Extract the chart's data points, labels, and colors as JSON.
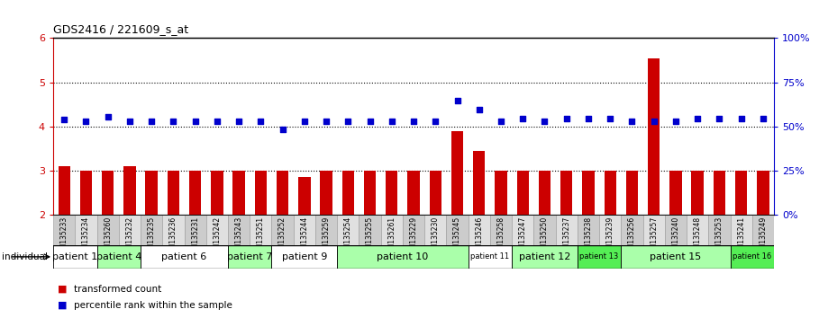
{
  "title": "GDS2416 / 221609_s_at",
  "samples": [
    "GSM135233",
    "GSM135234",
    "GSM135260",
    "GSM135232",
    "GSM135235",
    "GSM135236",
    "GSM135231",
    "GSM135242",
    "GSM135243",
    "GSM135251",
    "GSM135252",
    "GSM135244",
    "GSM135259",
    "GSM135254",
    "GSM135255",
    "GSM135261",
    "GSM135229",
    "GSM135230",
    "GSM135245",
    "GSM135246",
    "GSM135258",
    "GSM135247",
    "GSM135250",
    "GSM135237",
    "GSM135238",
    "GSM135239",
    "GSM135256",
    "GSM135257",
    "GSM135240",
    "GSM135248",
    "GSM135253",
    "GSM135241",
    "GSM135249"
  ],
  "red_values": [
    3.1,
    3.0,
    3.0,
    3.1,
    3.0,
    3.0,
    3.0,
    3.0,
    3.0,
    3.0,
    3.0,
    2.85,
    3.0,
    3.0,
    3.0,
    3.0,
    3.0,
    3.0,
    3.9,
    3.45,
    3.0,
    3.0,
    3.0,
    3.0,
    3.0,
    3.0,
    3.0,
    5.55,
    3.0,
    3.0,
    3.0,
    3.0,
    3.0
  ],
  "blue_values": [
    4.15,
    4.12,
    4.22,
    4.12,
    4.12,
    4.12,
    4.12,
    4.12,
    4.12,
    4.12,
    3.93,
    4.12,
    4.12,
    4.12,
    4.12,
    4.12,
    4.12,
    4.12,
    4.58,
    4.38,
    4.12,
    4.18,
    4.12,
    4.18,
    4.18,
    4.18,
    4.12,
    4.12,
    4.12,
    4.18,
    4.18,
    4.18,
    4.18
  ],
  "ylim_left": [
    2,
    6
  ],
  "ylim_right": [
    0,
    100
  ],
  "yticks_left": [
    2,
    3,
    4,
    5,
    6
  ],
  "yticks_right": [
    0,
    25,
    50,
    75,
    100
  ],
  "ytick_labels_right": [
    "0%",
    "25%",
    "50%",
    "75%",
    "100%"
  ],
  "hlines": [
    3.0,
    4.0,
    5.0
  ],
  "patient_groups": [
    {
      "label": "patient 1",
      "start": 0,
      "end": 2,
      "color": "#ffffff",
      "fontsize": 8
    },
    {
      "label": "patient 4",
      "start": 2,
      "end": 4,
      "color": "#aaffaa",
      "fontsize": 8
    },
    {
      "label": "patient 6",
      "start": 4,
      "end": 8,
      "color": "#ffffff",
      "fontsize": 8
    },
    {
      "label": "patient 7",
      "start": 8,
      "end": 10,
      "color": "#aaffaa",
      "fontsize": 8
    },
    {
      "label": "patient 9",
      "start": 10,
      "end": 13,
      "color": "#ffffff",
      "fontsize": 8
    },
    {
      "label": "patient 10",
      "start": 13,
      "end": 19,
      "color": "#aaffaa",
      "fontsize": 8
    },
    {
      "label": "patient 11",
      "start": 19,
      "end": 21,
      "color": "#ffffff",
      "fontsize": 6
    },
    {
      "label": "patient 12",
      "start": 21,
      "end": 24,
      "color": "#aaffaa",
      "fontsize": 8
    },
    {
      "label": "patient 13",
      "start": 24,
      "end": 26,
      "color": "#55ee55",
      "fontsize": 6
    },
    {
      "label": "patient 15",
      "start": 26,
      "end": 31,
      "color": "#aaffaa",
      "fontsize": 8
    },
    {
      "label": "patient 16",
      "start": 31,
      "end": 33,
      "color": "#55ee55",
      "fontsize": 6
    }
  ],
  "bar_color": "#cc0000",
  "dot_color": "#0000cc",
  "background_color": "#ffffff",
  "tick_color_left": "#cc0000",
  "tick_color_right": "#0000cc",
  "sample_col_even": "#cccccc",
  "sample_col_odd": "#e0e0e0"
}
